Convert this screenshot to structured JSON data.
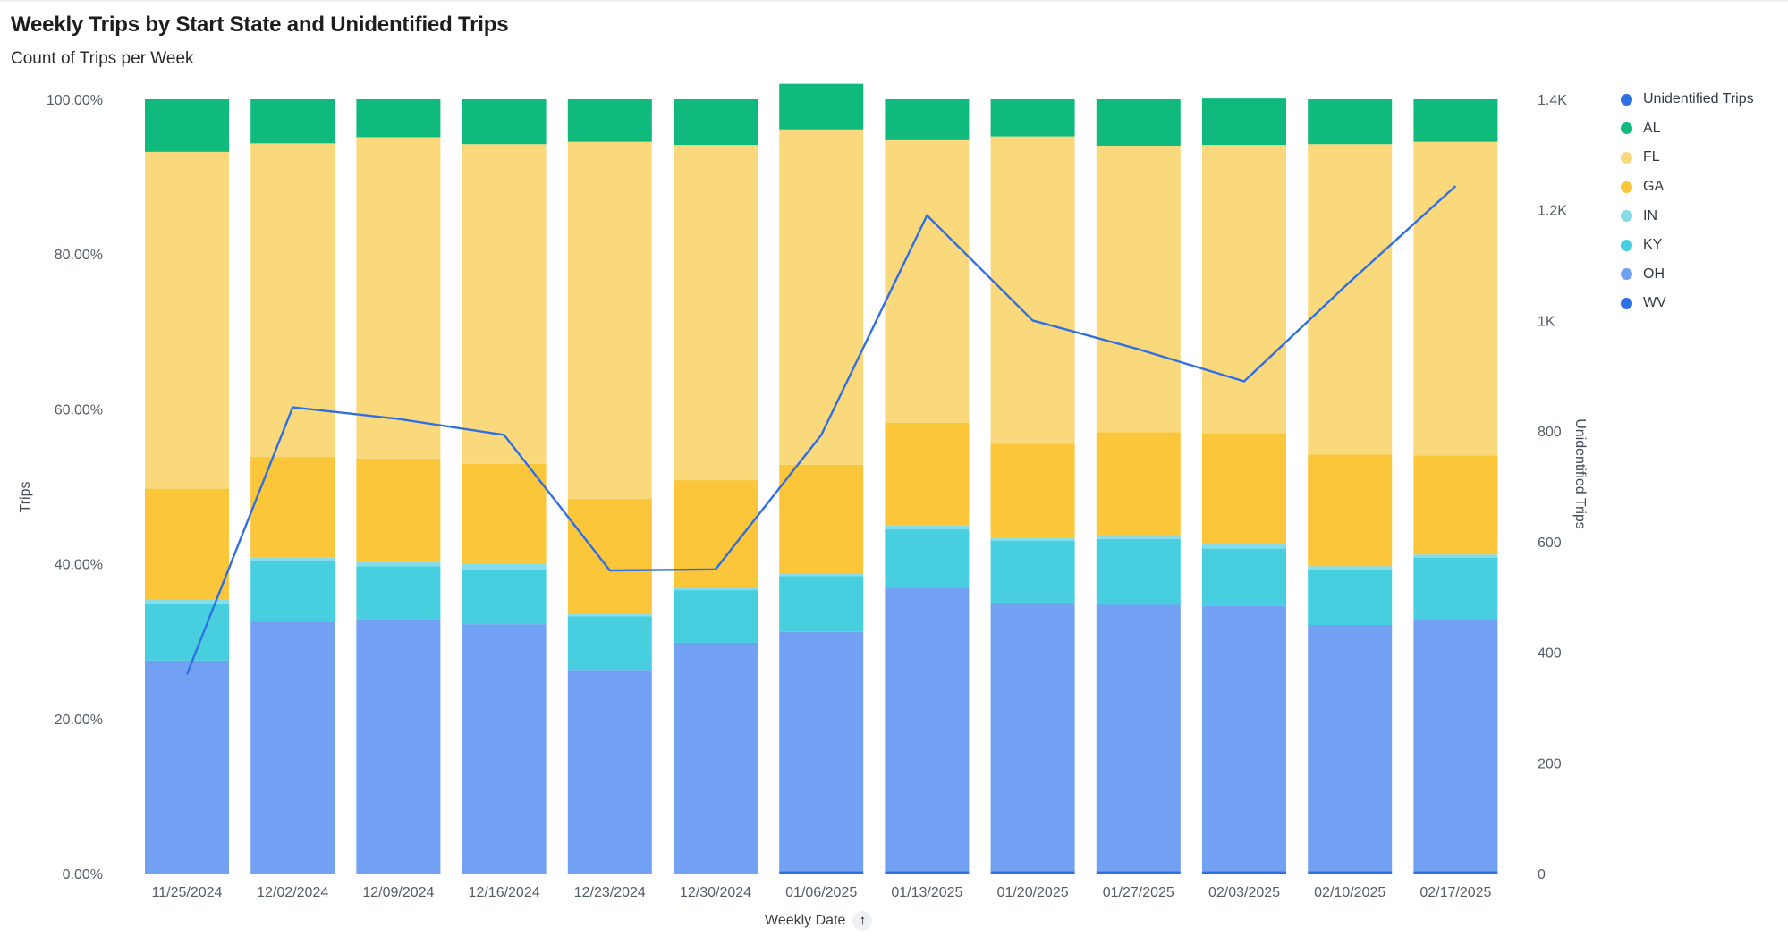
{
  "title": "Weekly Trips by Start State and Unidentified Trips",
  "subtitle": "Count of Trips per Week",
  "legend": [
    {
      "label": "Unidentified Trips",
      "color": "#2f6fe4"
    },
    {
      "label": "AL",
      "color": "#10b97c"
    },
    {
      "label": "FL",
      "color": "#fad97c"
    },
    {
      "label": "GA",
      "color": "#fbc63a"
    },
    {
      "label": "IN",
      "color": "#87dcea"
    },
    {
      "label": "KY",
      "color": "#47cfe0"
    },
    {
      "label": "OH",
      "color": "#72a1f3"
    },
    {
      "label": "WV",
      "color": "#2f6fe4"
    }
  ],
  "x_axis_title": "Weekly Date",
  "chart_data": {
    "type": "bar",
    "stacked": "percent",
    "title": "Weekly Trips by Start State and Unidentified Trips",
    "subtitle": "Count of Trips per Week",
    "xlabel": "Weekly Date",
    "ylabel": "Trips",
    "y2label": "Unidentified Trips",
    "categories": [
      "11/25/2024",
      "12/02/2024",
      "12/09/2024",
      "12/16/2024",
      "12/23/2024",
      "12/30/2024",
      "01/06/2025",
      "01/13/2025",
      "01/20/2025",
      "01/27/2025",
      "02/03/2025",
      "02/10/2025",
      "02/17/2025"
    ],
    "series": [
      {
        "name": "WV",
        "color": "#2f6fe4",
        "values": [
          0,
          0,
          0,
          0,
          0,
          0,
          0.3,
          0.3,
          0.3,
          0.3,
          0.3,
          0.3,
          0.3
        ]
      },
      {
        "name": "OH",
        "color": "#72a1f3",
        "values": [
          27.5,
          32.5,
          32.8,
          32.2,
          26.3,
          29.8,
          30.9,
          36.6,
          34.7,
          34.4,
          34.3,
          31.8,
          32.6
        ]
      },
      {
        "name": "KY",
        "color": "#47cfe0",
        "values": [
          7.4,
          7.9,
          6.9,
          7.1,
          6.9,
          6.8,
          7.2,
          7.6,
          8.0,
          8.5,
          7.4,
          7.1,
          7.9
        ]
      },
      {
        "name": "IN",
        "color": "#87dcea",
        "values": [
          0.5,
          0.4,
          0.5,
          0.7,
          0.4,
          0.4,
          0.4,
          0.5,
          0.4,
          0.4,
          0.5,
          0.5,
          0.4
        ]
      },
      {
        "name": "GA",
        "color": "#fbc63a",
        "values": [
          14.3,
          13.0,
          13.4,
          12.9,
          14.8,
          13.8,
          14.0,
          13.2,
          12.1,
          13.4,
          14.4,
          14.4,
          12.8
        ]
      },
      {
        "name": "FL",
        "color": "#fad97c",
        "values": [
          43.5,
          40.5,
          41.5,
          41.3,
          46.1,
          43.3,
          43.3,
          36.5,
          39.7,
          37.0,
          37.2,
          40.1,
          40.5
        ]
      },
      {
        "name": "AL",
        "color": "#10b97c",
        "values": [
          6.8,
          5.7,
          4.9,
          5.8,
          5.5,
          5.9,
          5.9,
          5.3,
          4.8,
          6.0,
          6.0,
          5.8,
          5.5
        ]
      }
    ],
    "line_series": {
      "name": "Unidentified Trips",
      "axis": "right",
      "color": "#2f6fe4",
      "values": [
        360,
        843,
        822,
        793,
        548,
        550,
        793,
        1190,
        1000,
        948,
        890,
        1070,
        1243
      ]
    },
    "ylim": [
      0,
      100
    ],
    "y_ticks": [
      "0.00%",
      "20.00%",
      "40.00%",
      "60.00%",
      "80.00%",
      "100.00%"
    ],
    "y2lim": [
      0,
      1400
    ],
    "y2_ticks": [
      "0",
      "200",
      "400",
      "600",
      "800",
      "1K",
      "1.2K",
      "1.4K"
    ],
    "legend_position": "right",
    "grid": false
  }
}
